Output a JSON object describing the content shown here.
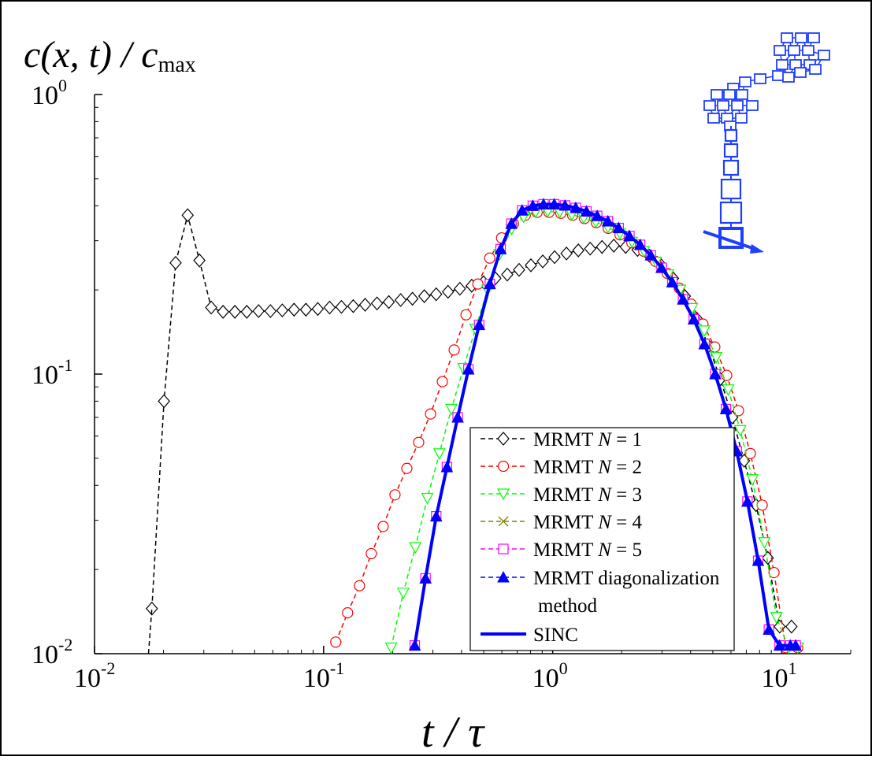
{
  "chart_data": {
    "type": "line",
    "x_scale": "log",
    "y_scale": "log",
    "xlim": [
      0.01,
      20
    ],
    "ylim": [
      0.01,
      1
    ],
    "ylabel": {
      "c": "c",
      "xt": "(x, t) / ",
      "c2": "c",
      "sub": "max"
    },
    "xlabel": {
      "t": "t",
      "slash": " / ",
      "tau": "τ"
    },
    "x_ticks": [
      {
        "base": "10",
        "exp": "-2",
        "value": 0.01
      },
      {
        "base": "10",
        "exp": "-1",
        "value": 0.1
      },
      {
        "base": "10",
        "exp": "0",
        "value": 1
      },
      {
        "base": "10",
        "exp": "1",
        "value": 10
      }
    ],
    "y_ticks": [
      {
        "base": "10",
        "exp": "-2",
        "value": 0.01
      },
      {
        "base": "10",
        "exp": "-1",
        "value": 0.1
      },
      {
        "base": "10",
        "exp": "0",
        "value": 1
      }
    ],
    "grid": false,
    "legend_position": "bottom-right",
    "series": [
      {
        "name": "MRMT N = 1",
        "label_prefix": "MRMT ",
        "label_var": "N",
        "label_suffix": " = 1",
        "color": "#000000",
        "marker": "diamond",
        "line": "dashed",
        "x": [
          0.0178,
          0.0201,
          0.0226,
          0.0255,
          0.0287,
          0.0323,
          0.0364,
          0.041,
          0.0462,
          0.052,
          0.0586,
          0.066,
          0.0743,
          0.0837,
          0.0943,
          0.1062,
          0.1196,
          0.1347,
          0.1518,
          0.171,
          0.1926,
          0.2169,
          0.2443,
          0.2752,
          0.31,
          0.3492,
          0.3933,
          0.4431,
          0.4991,
          0.5622,
          0.6333,
          0.7133,
          0.8035,
          0.9051,
          1.0195,
          1.1484,
          1.2936,
          1.4572,
          1.6414,
          1.8489,
          2.0827,
          2.346,
          2.6426,
          2.9767,
          3.3531,
          3.7771,
          4.2546,
          4.7926,
          5.3985,
          6.081,
          6.8499,
          7.7159,
          8.6915,
          9.7904,
          11.028
        ],
        "y": [
          0.0145,
          0.08,
          0.25,
          0.37,
          0.255,
          0.173,
          0.167,
          0.167,
          0.167,
          0.168,
          0.168,
          0.169,
          0.17,
          0.17,
          0.171,
          0.173,
          0.174,
          0.175,
          0.177,
          0.179,
          0.181,
          0.184,
          0.186,
          0.19,
          0.193,
          0.197,
          0.202,
          0.207,
          0.213,
          0.22,
          0.227,
          0.236,
          0.245,
          0.253,
          0.262,
          0.27,
          0.277,
          0.281,
          0.285,
          0.288,
          0.285,
          0.278,
          0.265,
          0.245,
          0.22,
          0.19,
          0.158,
          0.126,
          0.096,
          0.07,
          0.049,
          0.034,
          0.022,
          0.0125,
          0.0125
        ]
      },
      {
        "name": "MRMT N = 2",
        "label_prefix": "MRMT ",
        "label_var": "N",
        "label_suffix": " = 2",
        "color": "#ff0000",
        "marker": "circle",
        "line": "dashed",
        "x": [
          0.113,
          0.1273,
          0.1434,
          0.1615,
          0.1819,
          0.2049,
          0.2308,
          0.26,
          0.2929,
          0.3299,
          0.3716,
          0.4186,
          0.4715,
          0.5311,
          0.5983,
          0.6739,
          0.7591,
          0.8551,
          0.9632,
          1.085,
          1.2222,
          1.3767,
          1.5508,
          1.7469,
          1.9678,
          2.2166,
          2.4969,
          2.8126,
          3.1683,
          3.5689,
          4.0202,
          4.5285,
          5.1012,
          5.7462,
          6.4728,
          7.2913,
          8.2133,
          9.2518,
          10.422,
          11.739
        ],
        "y": [
          0.011,
          0.014,
          0.0175,
          0.0228,
          0.0285,
          0.037,
          0.046,
          0.057,
          0.072,
          0.094,
          0.122,
          0.163,
          0.21,
          0.26,
          0.307,
          0.345,
          0.37,
          0.379,
          0.379,
          0.376,
          0.37,
          0.36,
          0.348,
          0.332,
          0.315,
          0.295,
          0.275,
          0.253,
          0.229,
          0.203,
          0.178,
          0.151,
          0.125,
          0.099,
          0.074,
          0.052,
          0.034,
          0.0195,
          0.0105,
          0.0105
        ]
      },
      {
        "name": "MRMT N = 3",
        "label_prefix": "MRMT ",
        "label_var": "N",
        "label_suffix": " = 3",
        "color": "#00ff00",
        "marker": "triangle-down",
        "line": "dashed",
        "x": [
          0.1972,
          0.2227,
          0.2513,
          0.2836,
          0.3201,
          0.3612,
          0.4077,
          0.4601,
          0.5193,
          0.5861,
          0.6615,
          0.7466,
          0.8427,
          0.951,
          1.0734,
          1.2115,
          1.3673,
          1.5432,
          1.7417,
          1.9657,
          2.2186,
          2.504,
          2.8261,
          3.1897,
          3.6,
          4.0631,
          4.5857,
          5.1756,
          5.8413,
          6.5927,
          7.4408,
          8.3979,
          9.4781,
          10.697,
          11.739
        ],
        "y": [
          0.0105,
          0.0165,
          0.024,
          0.036,
          0.052,
          0.075,
          0.105,
          0.145,
          0.2,
          0.268,
          0.33,
          0.365,
          0.38,
          0.382,
          0.38,
          0.372,
          0.362,
          0.35,
          0.335,
          0.318,
          0.297,
          0.275,
          0.252,
          0.227,
          0.2,
          0.172,
          0.143,
          0.115,
          0.088,
          0.063,
          0.042,
          0.025,
          0.0135,
          0.0105,
          0.0105
        ]
      },
      {
        "name": "MRMT N = 4",
        "label_prefix": "MRMT ",
        "label_var": "N",
        "label_suffix": " = 4",
        "color": "#808000",
        "marker": "x",
        "line": "dashed",
        "x": [
          0.25,
          0.2785,
          0.3102,
          0.3455,
          0.3849,
          0.4287,
          0.4775,
          0.5319,
          0.5925,
          0.66,
          0.7351,
          0.8188,
          0.9121,
          1.016,
          1.1317,
          1.2606,
          1.4041,
          1.5641,
          1.7422,
          1.9406,
          2.1616,
          2.4078,
          2.6821,
          2.9875,
          3.3278,
          3.7068,
          4.129,
          4.5992,
          5.1231,
          5.7066,
          6.3565,
          7.0805,
          7.8869,
          8.7852,
          9.7858,
          10.9,
          11.5
        ],
        "y": [
          0.0107,
          0.0186,
          0.031,
          0.0465,
          0.07,
          0.104,
          0.15,
          0.21,
          0.28,
          0.345,
          0.385,
          0.4,
          0.405,
          0.405,
          0.401,
          0.393,
          0.382,
          0.368,
          0.352,
          0.333,
          0.312,
          0.29,
          0.266,
          0.24,
          0.213,
          0.185,
          0.157,
          0.128,
          0.1,
          0.075,
          0.053,
          0.035,
          0.0215,
          0.0122,
          0.0107,
          0.0107,
          0.0107
        ]
      },
      {
        "name": "MRMT N = 5",
        "label_prefix": "MRMT ",
        "label_var": "N",
        "label_suffix": " = 5",
        "color": "#ff00ff",
        "marker": "square",
        "line": "dashed",
        "x": [
          0.25,
          0.2785,
          0.3102,
          0.3455,
          0.3849,
          0.4287,
          0.4775,
          0.5319,
          0.5925,
          0.66,
          0.7351,
          0.8188,
          0.9121,
          1.016,
          1.1317,
          1.2606,
          1.4041,
          1.5641,
          1.7422,
          1.9406,
          2.1616,
          2.4078,
          2.6821,
          2.9875,
          3.3278,
          3.7068,
          4.129,
          4.5992,
          5.1231,
          5.7066,
          6.3565,
          7.0805,
          7.8869,
          8.7852,
          9.7858,
          10.9,
          11.5
        ],
        "y": [
          0.0107,
          0.0186,
          0.031,
          0.0465,
          0.07,
          0.104,
          0.15,
          0.21,
          0.28,
          0.345,
          0.385,
          0.4,
          0.405,
          0.405,
          0.401,
          0.393,
          0.382,
          0.368,
          0.352,
          0.333,
          0.312,
          0.29,
          0.266,
          0.24,
          0.213,
          0.185,
          0.157,
          0.128,
          0.1,
          0.075,
          0.053,
          0.035,
          0.0215,
          0.0122,
          0.0107,
          0.0107,
          0.0107
        ]
      },
      {
        "name": "MRMT diagonalization method",
        "label_prefix": "MRMT diagonalization",
        "label_var": "",
        "label_suffix": "",
        "label_line2": "method",
        "color": "#0000ff",
        "marker": "triangle-up",
        "line": "dashed",
        "x": [
          0.25,
          0.2785,
          0.3102,
          0.3455,
          0.3849,
          0.4287,
          0.4775,
          0.5319,
          0.5925,
          0.66,
          0.7351,
          0.8188,
          0.9121,
          1.016,
          1.1317,
          1.2606,
          1.4041,
          1.5641,
          1.7422,
          1.9406,
          2.1616,
          2.4078,
          2.6821,
          2.9875,
          3.3278,
          3.7068,
          4.129,
          4.5992,
          5.1231,
          5.7066,
          6.3565,
          7.0805,
          7.8869,
          8.7852,
          9.7858,
          10.9,
          11.5
        ],
        "y": [
          0.0107,
          0.0186,
          0.031,
          0.0465,
          0.07,
          0.104,
          0.15,
          0.21,
          0.28,
          0.345,
          0.385,
          0.4,
          0.405,
          0.405,
          0.401,
          0.393,
          0.382,
          0.368,
          0.352,
          0.333,
          0.312,
          0.29,
          0.266,
          0.24,
          0.213,
          0.185,
          0.157,
          0.128,
          0.1,
          0.075,
          0.053,
          0.035,
          0.0215,
          0.0122,
          0.0107,
          0.0107,
          0.0107
        ]
      },
      {
        "name": "SINC",
        "label_prefix": "SINC",
        "label_var": "",
        "label_suffix": "",
        "color": "#0000ff",
        "marker": "none",
        "line": "solid",
        "x": [
          0.25,
          0.2785,
          0.3102,
          0.3455,
          0.3849,
          0.4287,
          0.4775,
          0.5319,
          0.5925,
          0.66,
          0.7351,
          0.8188,
          0.9121,
          1.016,
          1.1317,
          1.2606,
          1.4041,
          1.5641,
          1.7422,
          1.9406,
          2.1616,
          2.4078,
          2.6821,
          2.9875,
          3.3278,
          3.7068,
          4.129,
          4.5992,
          5.1231,
          5.7066,
          6.3565,
          7.0805,
          7.8869,
          8.7852,
          9.7858,
          10.9,
          11.5
        ],
        "y": [
          0.0107,
          0.0186,
          0.031,
          0.0465,
          0.07,
          0.104,
          0.15,
          0.21,
          0.28,
          0.345,
          0.385,
          0.4,
          0.405,
          0.405,
          0.401,
          0.393,
          0.382,
          0.368,
          0.352,
          0.333,
          0.312,
          0.29,
          0.266,
          0.24,
          0.213,
          0.185,
          0.157,
          0.128,
          0.1,
          0.075,
          0.053,
          0.035,
          0.0215,
          0.0122,
          0.0107,
          0.0107,
          0.0107
        ]
      }
    ]
  },
  "inset": {
    "description_icon": "network-graph-icon",
    "color": "#1f3fff"
  }
}
